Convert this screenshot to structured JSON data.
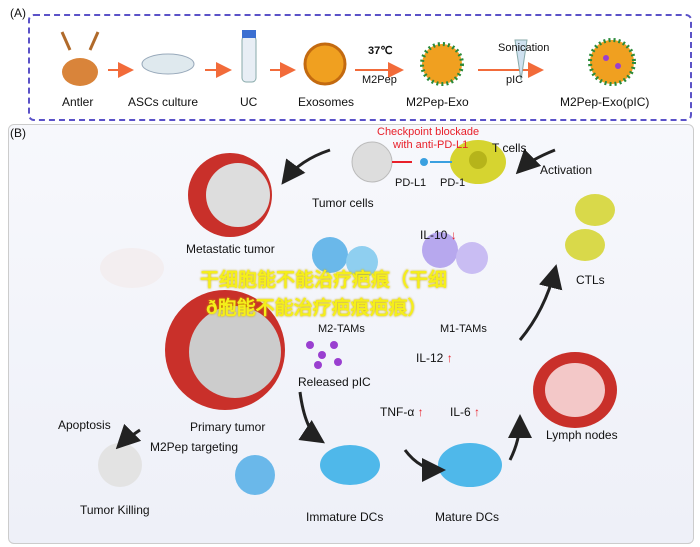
{
  "panel_a": {
    "tag": "(A)",
    "steps": [
      "Antler",
      "ASCs culture",
      "UC",
      "Exosomes",
      "M2Pep-Exo",
      "M2Pep-Exo(pIC)"
    ],
    "temp": "37℃",
    "m2pep": "M2Pep",
    "sonication": "Sonication",
    "pic": "pIC"
  },
  "panel_b": {
    "tag": "(B)",
    "checkpoint": "Checkpoint blockade",
    "checkpoint2": "with anti-PD-L1",
    "t_cells": "T cells",
    "pd_l1": "PD-L1",
    "pd_1": "PD-1",
    "tumor_cells": "Tumor cells",
    "activation": "Activation",
    "metastatic_tumor": "Metastatic tumor",
    "il10": "IL-10",
    "m2_tams": "M2-TAMs",
    "m1_tams": "M1-TAMs",
    "ctls": "CTLs",
    "il12": "IL-12",
    "released_pic": "Released pIC",
    "tnfa": "TNF-α",
    "il6": "IL-6",
    "lymph_nodes": "Lymph nodes",
    "primary_tumor": "Primary tumor",
    "apoptosis": "Apoptosis",
    "m2pep_targeting": "M2Pep targeting",
    "tumor_killing": "Tumor Killing",
    "immature_dcs": "Immature DCs",
    "mature_dcs": "Mature DCs",
    "up_arrow": "↑",
    "down_arrow": "↓"
  },
  "watermark": {
    "line1": "干细胞能不能治疗疤痕（干细",
    "line2": "ð胞能不能治疗疤痕疤痕）"
  },
  "colors": {
    "border": "#5b52c8",
    "accent_red": "#e8202a",
    "watermark": "#f5ef1a"
  }
}
